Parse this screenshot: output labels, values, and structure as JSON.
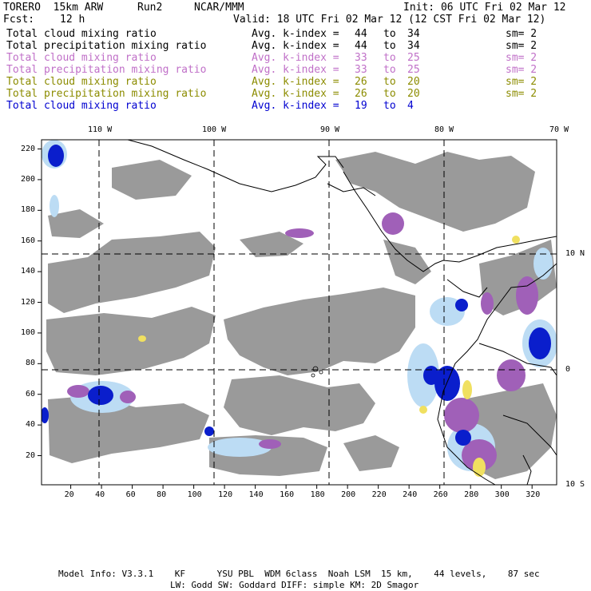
{
  "header": {
    "model": "TORERO  15km ARW",
    "run": "Run2",
    "institution": "NCAR/MMM",
    "init": "Init: 06 UTC Fri 02 Mar 12",
    "fcst_label": "Fcst:",
    "fcst_value": "12 h",
    "valid": "Valid: 18 UTC Fri 02 Mar 12 (12 CST Fri 02 Mar 12)"
  },
  "legend": [
    {
      "field": "Total cloud mixing ratio",
      "kindex_label": "Avg. k-index =",
      "k_from": "44",
      "to": "to",
      "k_to": "34",
      "sm": "sm= 2",
      "color": "#000000"
    },
    {
      "field": "Total precipitation mixing ratio",
      "kindex_label": "Avg. k-index =",
      "k_from": "44",
      "to": "to",
      "k_to": "34",
      "sm": "sm= 2",
      "color": "#000000"
    },
    {
      "field": "Total cloud mixing ratio",
      "kindex_label": "Avg. k-index =",
      "k_from": "33",
      "to": "to",
      "k_to": "25",
      "sm": "sm= 2",
      "color": "#c070c8"
    },
    {
      "field": "Total precipitation mixing ratio",
      "kindex_label": "Avg. k-index =",
      "k_from": "33",
      "to": "to",
      "k_to": "25",
      "sm": "sm= 2",
      "color": "#c070c8"
    },
    {
      "field": "Total cloud mixing ratio",
      "kindex_label": "Avg. k-index =",
      "k_from": "26",
      "to": "to",
      "k_to": "20",
      "sm": "sm= 2",
      "color": "#8c8c00"
    },
    {
      "field": "Total precipitation mixing ratio",
      "kindex_label": "Avg. k-index =",
      "k_from": "26",
      "to": "to",
      "k_to": "20",
      "sm": "sm= 2",
      "color": "#8c8c00"
    },
    {
      "field": "Total cloud mixing ratio",
      "kindex_label": "Avg. k-index =",
      "k_from": "19",
      "to": "to",
      "k_to": "4",
      "sm": "",
      "color": "#0000d0"
    }
  ],
  "map": {
    "lon_labels": [
      "110 W",
      "100 W",
      "90 W",
      "80 W",
      "70 W"
    ],
    "lat_labels": [
      "10 N",
      "0",
      "10 S"
    ],
    "x_ticks": [
      "20",
      "40",
      "60",
      "80",
      "100",
      "120",
      "140",
      "160",
      "180",
      "200",
      "220",
      "240",
      "260",
      "280",
      "300",
      "320"
    ],
    "y_ticks": [
      "20",
      "40",
      "60",
      "80",
      "100",
      "120",
      "140",
      "160",
      "180",
      "200",
      "220"
    ],
    "colors": {
      "gray_cloud": "#9a9a9a",
      "purple": "#a060b8",
      "light_blue": "#bcdcf4",
      "blue": "#0a1ecc",
      "yellow": "#f0e060"
    }
  },
  "footer": {
    "line1": "Model Info: V3.3.1    KF      YSU PBL  WDM 6class  Noah LSM  15 km,    44 levels,    87 sec",
    "line2": "LW: Godd SW: Goddard DIFF: simple KM: 2D Smagor"
  }
}
